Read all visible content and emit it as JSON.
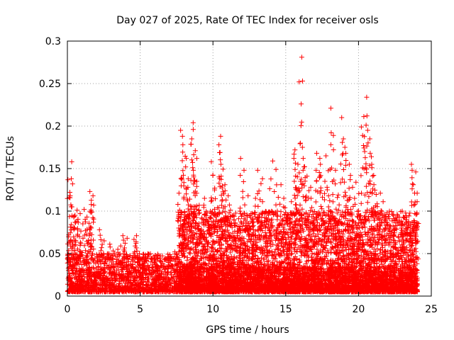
{
  "chart_data": {
    "type": "scatter",
    "title": "Day 027 of 2025, Rate Of TEC Index for receiver osls",
    "xlabel": "GPS time / hours",
    "ylabel": "ROTI / TECUs",
    "xlim": [
      0,
      25
    ],
    "ylim": [
      0,
      0.3
    ],
    "xticks": [
      0,
      5,
      10,
      15,
      20,
      25
    ],
    "xtick_labels": [
      "0",
      "5",
      "10",
      "15",
      "20",
      "25"
    ],
    "yticks": [
      0,
      0.05,
      0.1,
      0.15,
      0.2,
      0.25,
      0.3
    ],
    "ytick_labels": [
      "0",
      "0.05",
      "0.1",
      "0.15",
      "0.2",
      "0.25",
      "0.3"
    ],
    "grid": true,
    "marker": "+",
    "color": "#ff0000",
    "series": [
      {
        "points": [
          [
            0.1,
            0.072
          ],
          [
            0.15,
            0.158
          ],
          [
            0.2,
            0.138
          ],
          [
            0.25,
            0.132
          ],
          [
            0.3,
            0.118
          ],
          [
            0.35,
            0.105
          ],
          [
            0.45,
            0.095
          ],
          [
            0.55,
            0.088
          ],
          [
            0.6,
            0.078
          ],
          [
            0.7,
            0.101
          ],
          [
            0.8,
            0.097
          ],
          [
            1.0,
            0.068
          ],
          [
            1.1,
            0.085
          ],
          [
            1.25,
            0.102
          ],
          [
            1.35,
            0.093
          ],
          [
            1.5,
            0.071
          ],
          [
            1.6,
            0.123
          ],
          [
            1.65,
            0.118
          ],
          [
            1.7,
            0.107
          ],
          [
            1.75,
            0.099
          ],
          [
            2.2,
            0.078
          ],
          [
            2.4,
            0.065
          ],
          [
            3.0,
            0.061
          ],
          [
            3.4,
            0.055
          ],
          [
            3.8,
            0.071
          ],
          [
            4.0,
            0.068
          ],
          [
            4.6,
            0.071
          ],
          [
            4.7,
            0.064
          ],
          [
            5.2,
            0.045
          ],
          [
            6.0,
            0.042
          ],
          [
            7.0,
            0.046
          ],
          [
            7.5,
            0.052
          ],
          [
            7.7,
            0.121
          ],
          [
            7.9,
            0.195
          ],
          [
            7.95,
            0.188
          ],
          [
            8.0,
            0.178
          ],
          [
            8.05,
            0.162
          ],
          [
            8.1,
            0.152
          ],
          [
            8.2,
            0.138
          ],
          [
            8.3,
            0.128
          ],
          [
            8.4,
            0.112
          ],
          [
            8.5,
            0.105
          ],
          [
            8.55,
            0.196
          ],
          [
            8.6,
            0.204
          ],
          [
            8.65,
            0.185
          ],
          [
            8.7,
            0.171
          ],
          [
            8.75,
            0.162
          ],
          [
            8.8,
            0.148
          ],
          [
            8.9,
            0.135
          ],
          [
            9.0,
            0.121
          ],
          [
            9.2,
            0.098
          ],
          [
            9.4,
            0.115
          ],
          [
            9.5,
            0.107
          ],
          [
            9.7,
            0.092
          ],
          [
            9.9,
            0.158
          ],
          [
            10.0,
            0.142
          ],
          [
            10.1,
            0.127
          ],
          [
            10.3,
            0.104
          ],
          [
            10.45,
            0.188
          ],
          [
            10.5,
            0.178
          ],
          [
            10.55,
            0.169
          ],
          [
            10.6,
            0.155
          ],
          [
            10.7,
            0.141
          ],
          [
            10.8,
            0.131
          ],
          [
            10.9,
            0.124
          ],
          [
            11.0,
            0.118
          ],
          [
            11.2,
            0.101
          ],
          [
            11.5,
            0.095
          ],
          [
            11.8,
            0.091
          ],
          [
            12.0,
            0.162
          ],
          [
            12.1,
            0.148
          ],
          [
            12.3,
            0.118
          ],
          [
            12.6,
            0.097
          ],
          [
            12.9,
            0.083
          ],
          [
            13.0,
            0.115
          ],
          [
            13.2,
            0.148
          ],
          [
            13.3,
            0.138
          ],
          [
            13.5,
            0.111
          ],
          [
            13.8,
            0.098
          ],
          [
            14.0,
            0.159
          ],
          [
            14.3,
            0.149
          ],
          [
            14.6,
            0.131
          ],
          [
            14.8,
            0.115
          ],
          [
            15.0,
            0.104
          ],
          [
            15.2,
            0.095
          ],
          [
            15.4,
            0.098
          ],
          [
            15.5,
            0.135
          ],
          [
            15.6,
            0.167
          ],
          [
            15.65,
            0.172
          ],
          [
            15.7,
            0.162
          ],
          [
            15.8,
            0.155
          ],
          [
            15.9,
            0.145
          ],
          [
            16.0,
            0.135
          ],
          [
            16.05,
            0.281
          ],
          [
            16.1,
            0.253
          ],
          [
            16.2,
            0.175
          ],
          [
            16.3,
            0.162
          ],
          [
            16.4,
            0.152
          ],
          [
            16.5,
            0.141
          ],
          [
            16.6,
            0.128
          ],
          [
            16.8,
            0.115
          ],
          [
            17.0,
            0.148
          ],
          [
            17.2,
            0.168
          ],
          [
            17.3,
            0.162
          ],
          [
            17.4,
            0.155
          ],
          [
            17.5,
            0.142
          ],
          [
            17.6,
            0.135
          ],
          [
            17.7,
            0.128
          ],
          [
            17.8,
            0.118
          ],
          [
            17.9,
            0.165
          ],
          [
            18.1,
            0.221
          ],
          [
            18.2,
            0.189
          ],
          [
            18.3,
            0.148
          ],
          [
            18.5,
            0.132
          ],
          [
            18.7,
            0.119
          ],
          [
            18.9,
            0.21
          ],
          [
            19.0,
            0.185
          ],
          [
            19.1,
            0.175
          ],
          [
            19.2,
            0.168
          ],
          [
            19.3,
            0.155
          ],
          [
            19.4,
            0.142
          ],
          [
            19.5,
            0.128
          ],
          [
            19.7,
            0.115
          ],
          [
            19.9,
            0.134
          ],
          [
            20.1,
            0.121
          ],
          [
            20.3,
            0.199
          ],
          [
            20.4,
            0.189
          ],
          [
            20.5,
            0.234
          ],
          [
            20.55,
            0.212
          ],
          [
            20.6,
            0.201
          ],
          [
            20.7,
            0.195
          ],
          [
            20.8,
            0.185
          ],
          [
            20.9,
            0.168
          ],
          [
            21.0,
            0.155
          ],
          [
            21.1,
            0.142
          ],
          [
            21.2,
            0.131
          ],
          [
            21.4,
            0.121
          ],
          [
            21.6,
            0.111
          ],
          [
            21.9,
            0.098
          ],
          [
            22.1,
            0.091
          ],
          [
            22.3,
            0.083
          ],
          [
            22.5,
            0.078
          ],
          [
            22.9,
            0.072
          ],
          [
            23.2,
            0.085
          ],
          [
            23.4,
            0.081
          ],
          [
            23.6,
            0.079
          ],
          [
            23.7,
            0.155
          ],
          [
            23.8,
            0.148
          ],
          [
            23.9,
            0.146
          ],
          [
            23.95,
            0.121
          ],
          [
            24.0,
            0.108
          ]
        ]
      }
    ],
    "noise_bands": [
      {
        "x0": 0.0,
        "x1": 7.6,
        "ymin": 0.005,
        "ymax": 0.05,
        "density": 1400
      },
      {
        "x0": 7.6,
        "x1": 24.05,
        "ymin": 0.005,
        "ymax": 0.1,
        "density": 4200
      },
      {
        "x0": 7.6,
        "x1": 24.05,
        "ymin": 0.005,
        "ymax": 0.035,
        "density": 2500
      }
    ]
  }
}
